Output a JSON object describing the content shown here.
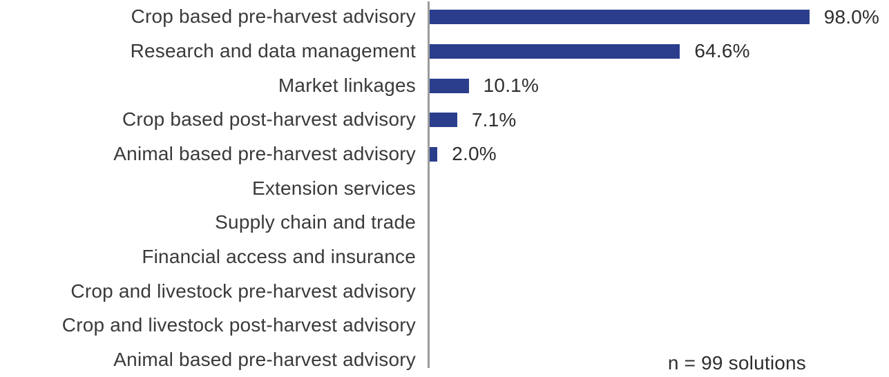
{
  "chart_data": {
    "type": "bar",
    "orientation": "horizontal",
    "categories": [
      "Crop based pre-harvest advisory",
      "Research and data management",
      "Market linkages",
      "Crop based post-harvest advisory",
      "Animal based pre-harvest advisory",
      "Extension services",
      "Supply chain and trade",
      "Financial access and insurance",
      "Crop and livestock pre-harvest advisory",
      "Crop and livestock post-harvest advisory",
      "Animal based pre-harvest advisory"
    ],
    "values": [
      98.0,
      64.6,
      10.1,
      7.1,
      2.0,
      0,
      0,
      0,
      0,
      0,
      0
    ],
    "value_labels": [
      "98.0%",
      "64.6%",
      "10.1%",
      "7.1%",
      "2.0%",
      "",
      "",
      "",
      "",
      "",
      ""
    ],
    "annotation": "n = 99 solutions",
    "title": "",
    "xlabel": "",
    "ylabel": "",
    "xlim": [
      0,
      100
    ],
    "grid": false,
    "legend": false,
    "colors": {
      "bar": "#2a3e8c",
      "axis": "#9b9b9b",
      "label_text": "#3a3a3a",
      "value_text": "#2e2e2e"
    }
  }
}
